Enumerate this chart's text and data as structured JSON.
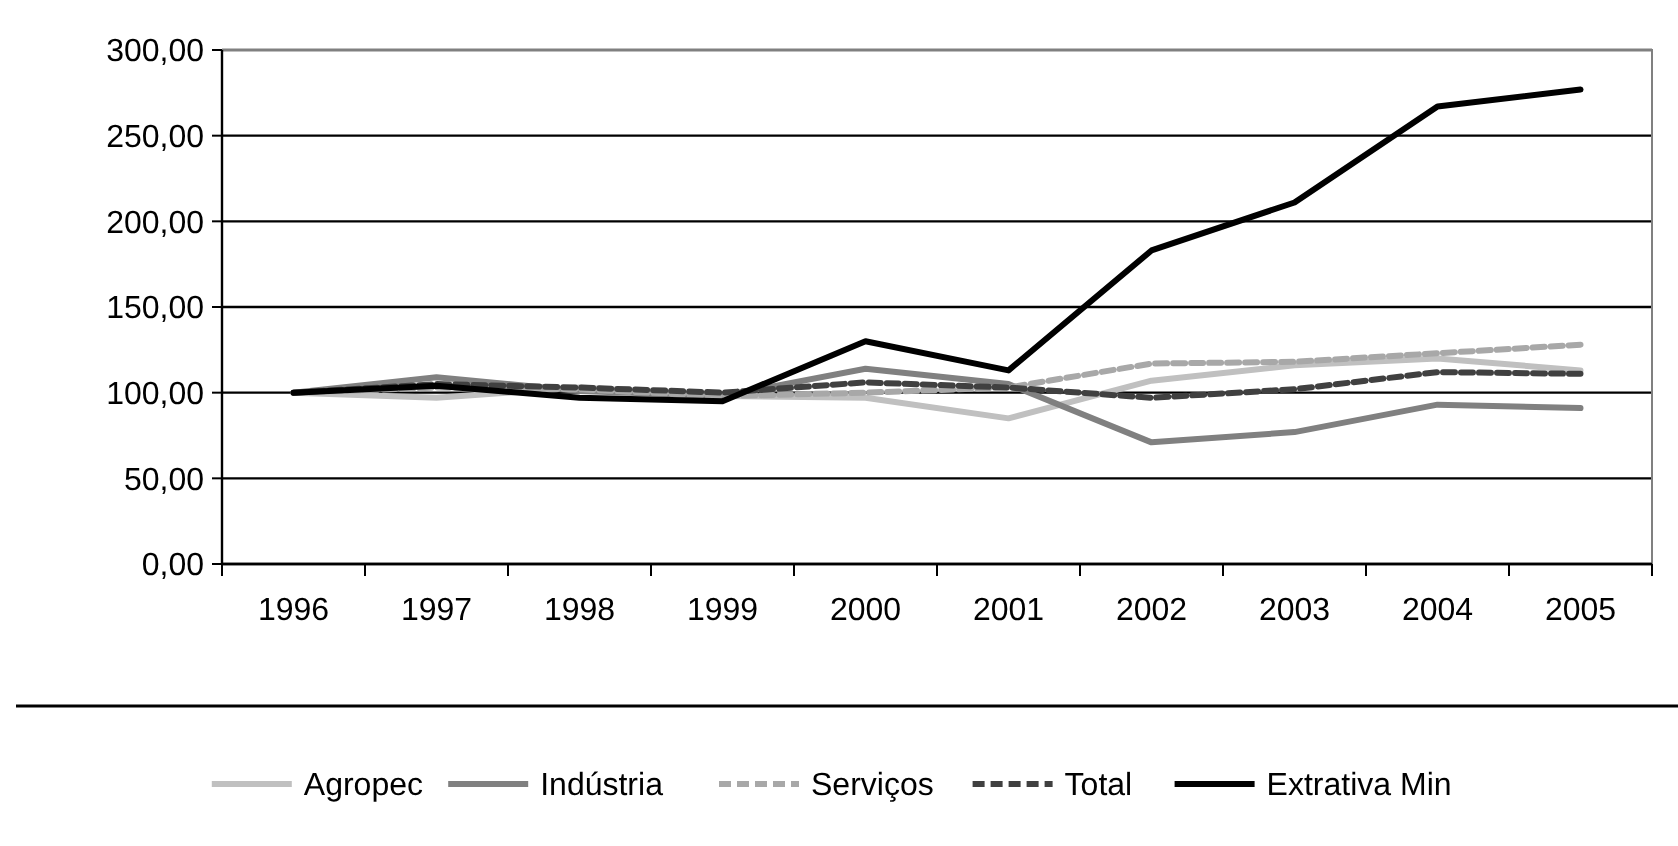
{
  "chart_data": {
    "type": "line",
    "categories": [
      "1996",
      "1997",
      "1998",
      "1999",
      "2000",
      "2001",
      "2002",
      "2003",
      "2004",
      "2005"
    ],
    "series": [
      {
        "name": "Agropec",
        "color": "#c0c0c0",
        "values": [
          100,
          97,
          103,
          98,
          97,
          85,
          107,
          116,
          120,
          113
        ]
      },
      {
        "name": "Indústria",
        "color": "#808080",
        "values": [
          100,
          109,
          101,
          98,
          114,
          105,
          71,
          77,
          93,
          91
        ]
      },
      {
        "name": "Serviços",
        "color": "#a8a8a8",
        "line_style": "dashed",
        "values": [
          100,
          103,
          102,
          98,
          100,
          103,
          117,
          118,
          123,
          128
        ]
      },
      {
        "name": "Total",
        "color": "#404040",
        "line_style": "dashed",
        "values": [
          100,
          105,
          103,
          100,
          106,
          103,
          97,
          102,
          112,
          111
        ]
      },
      {
        "name": "Extrativa Min",
        "color": "#000000",
        "values": [
          100,
          104,
          97,
          95,
          130,
          113,
          183,
          211,
          267,
          277
        ]
      }
    ],
    "ylim": [
      0,
      300
    ],
    "yticks": [
      {
        "value": 0,
        "label": "0,00"
      },
      {
        "value": 50,
        "label": "50,00"
      },
      {
        "value": 100,
        "label": "100,00"
      },
      {
        "value": 150,
        "label": "150,00"
      },
      {
        "value": 200,
        "label": "200,00"
      },
      {
        "value": 250,
        "label": "250,00"
      },
      {
        "value": 300,
        "label": "300,00"
      }
    ],
    "grid": "y",
    "legend": "bottom",
    "marker": "none",
    "line_style": "solid"
  }
}
